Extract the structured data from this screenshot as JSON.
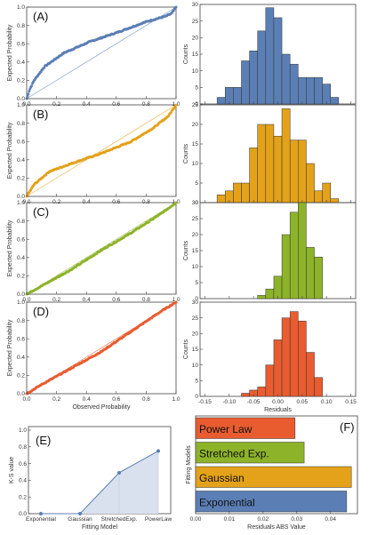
{
  "panel_labels": [
    "(A)",
    "(B)",
    "(C)",
    "(D)",
    "(E)",
    "(F)"
  ],
  "colors": {
    "A": "#5b7fb5",
    "B": "#e3a21a",
    "C": "#8db32a",
    "D": "#e85c30",
    "E_line": "#5b7fb5",
    "E_fill": "#d9e1ee"
  },
  "chart_data": [
    {
      "id": "A-pp",
      "type": "scatter",
      "xlabel": "",
      "ylabel": "Expected Probability",
      "xlim": [
        0,
        1
      ],
      "ylim": [
        0,
        1
      ],
      "xticks": [
        "0.0",
        "0.2",
        "0.4",
        "0.6",
        "0.8",
        "1.0"
      ],
      "yticks": [
        "0.0",
        "0.2",
        "0.4",
        "0.6",
        "0.8",
        "1.0"
      ],
      "curve": [
        [
          0,
          0
        ],
        [
          0.02,
          0.1
        ],
        [
          0.05,
          0.2
        ],
        [
          0.12,
          0.35
        ],
        [
          0.25,
          0.5
        ],
        [
          0.42,
          0.62
        ],
        [
          0.6,
          0.72
        ],
        [
          0.8,
          0.84
        ],
        [
          0.93,
          0.9
        ],
        [
          0.97,
          0.93
        ],
        [
          1.0,
          1.0
        ]
      ]
    },
    {
      "id": "A-hist",
      "type": "bar",
      "xlabel": "",
      "ylabel": "Counts",
      "ylim": [
        0,
        30
      ],
      "yticks": [
        "0",
        "5",
        "10",
        "15",
        "20",
        "25",
        "30"
      ],
      "values": [
        2,
        5,
        5,
        13,
        16,
        22,
        29,
        26,
        15,
        12,
        8,
        8,
        8,
        6,
        2
      ]
    },
    {
      "id": "B-pp",
      "type": "scatter",
      "xlabel": "",
      "ylabel": "Expected Probability",
      "xlim": [
        0,
        1
      ],
      "ylim": [
        0,
        1
      ],
      "xticks": [
        "0.0",
        "0.2",
        "0.4",
        "0.6",
        "0.8",
        "1.0"
      ],
      "yticks": [
        "0.0",
        "0.2",
        "0.4",
        "0.6",
        "0.8",
        "1.0"
      ],
      "curve": [
        [
          0,
          0
        ],
        [
          0.05,
          0.13
        ],
        [
          0.15,
          0.27
        ],
        [
          0.3,
          0.36
        ],
        [
          0.5,
          0.47
        ],
        [
          0.7,
          0.6
        ],
        [
          0.85,
          0.75
        ],
        [
          0.95,
          0.88
        ],
        [
          1.0,
          1.0
        ]
      ]
    },
    {
      "id": "B-hist",
      "type": "bar",
      "xlabel": "",
      "ylabel": "Counts",
      "ylim": [
        0,
        25
      ],
      "yticks": [
        "0",
        "5",
        "10",
        "15",
        "20",
        "25"
      ],
      "values": [
        2,
        3,
        5,
        5,
        14,
        20,
        20,
        17,
        24,
        16,
        16,
        10,
        3,
        5,
        1
      ]
    },
    {
      "id": "C-pp",
      "type": "scatter",
      "xlabel": "",
      "ylabel": "Expected Probability",
      "xlim": [
        0,
        1
      ],
      "ylim": [
        0,
        1
      ],
      "xticks": [
        "0.0",
        "0.2",
        "0.4",
        "0.6",
        "0.8",
        "1.0"
      ],
      "yticks": [
        "0.0",
        "0.2",
        "0.4",
        "0.6",
        "0.8",
        "1.0"
      ],
      "curve": [
        [
          0,
          0
        ],
        [
          0.1,
          0.09
        ],
        [
          0.3,
          0.27
        ],
        [
          0.5,
          0.48
        ],
        [
          0.7,
          0.67
        ],
        [
          0.9,
          0.88
        ],
        [
          1.0,
          1.0
        ]
      ]
    },
    {
      "id": "C-hist",
      "type": "bar",
      "xlabel": "",
      "ylabel": "Counts",
      "ylim": [
        0,
        30
      ],
      "yticks": [
        "0",
        "5",
        "10",
        "15",
        "20",
        "25",
        "30"
      ],
      "values": [
        0,
        0,
        0,
        0,
        0,
        1,
        3,
        7,
        20,
        27,
        30,
        16,
        13,
        0,
        0
      ]
    },
    {
      "id": "D-pp",
      "type": "scatter",
      "xlabel": "Observed Probability",
      "ylabel": "Expected Probability",
      "xlim": [
        0,
        1
      ],
      "ylim": [
        0,
        1
      ],
      "xticks": [
        "0.0",
        "0.2",
        "0.4",
        "0.6",
        "0.8",
        "1.0"
      ],
      "yticks": [
        "0.0",
        "0.2",
        "0.4",
        "0.6",
        "0.8",
        "1.0"
      ],
      "curve": [
        [
          0,
          0
        ],
        [
          0.1,
          0.1
        ],
        [
          0.3,
          0.28
        ],
        [
          0.5,
          0.46
        ],
        [
          0.7,
          0.68
        ],
        [
          0.9,
          0.9
        ],
        [
          1.0,
          1.0
        ]
      ]
    },
    {
      "id": "D-hist",
      "type": "bar",
      "xlabel": "Residuals",
      "ylabel": "Counts",
      "ylim": [
        0,
        30
      ],
      "yticks": [
        "0",
        "5",
        "10",
        "15",
        "20",
        "25",
        "30"
      ],
      "values": [
        0,
        0,
        0,
        1,
        2,
        3,
        10,
        18,
        25,
        27,
        24,
        14,
        6,
        0,
        0
      ],
      "xticks": [
        "-0.15",
        "-0.10",
        "-0.05",
        "0.00",
        "0.05",
        "0.10",
        "0.15"
      ]
    },
    {
      "id": "E",
      "type": "line",
      "xlabel": "Fitting Model",
      "ylabel": "K-S value",
      "categories": [
        "Exponential",
        "Gaussian",
        "StretchedExp.",
        "PowerLaw"
      ],
      "values": [
        0.0,
        0.0,
        0.49,
        0.75
      ],
      "ylim": [
        0,
        1
      ],
      "yticks": [
        "0.0",
        "0.2",
        "0.4",
        "0.6",
        "0.8",
        "1.0"
      ]
    },
    {
      "id": "F",
      "type": "bar",
      "orientation": "horizontal",
      "xlabel": "Residuals ABS Value",
      "ylabel": "Fitting Models",
      "categories": [
        "Power Law",
        "Stretched Exp.",
        "Gaussian",
        "Exponential"
      ],
      "values": [
        0.0295,
        0.0322,
        0.0462,
        0.0448
      ],
      "xlim": [
        0,
        0.048
      ],
      "xticks": [
        "0.00",
        "0.01",
        "0.02",
        "0.03",
        "0.04"
      ],
      "bar_colors": [
        "#e85c30",
        "#8db32a",
        "#e3a21a",
        "#5b7fb5"
      ]
    }
  ]
}
